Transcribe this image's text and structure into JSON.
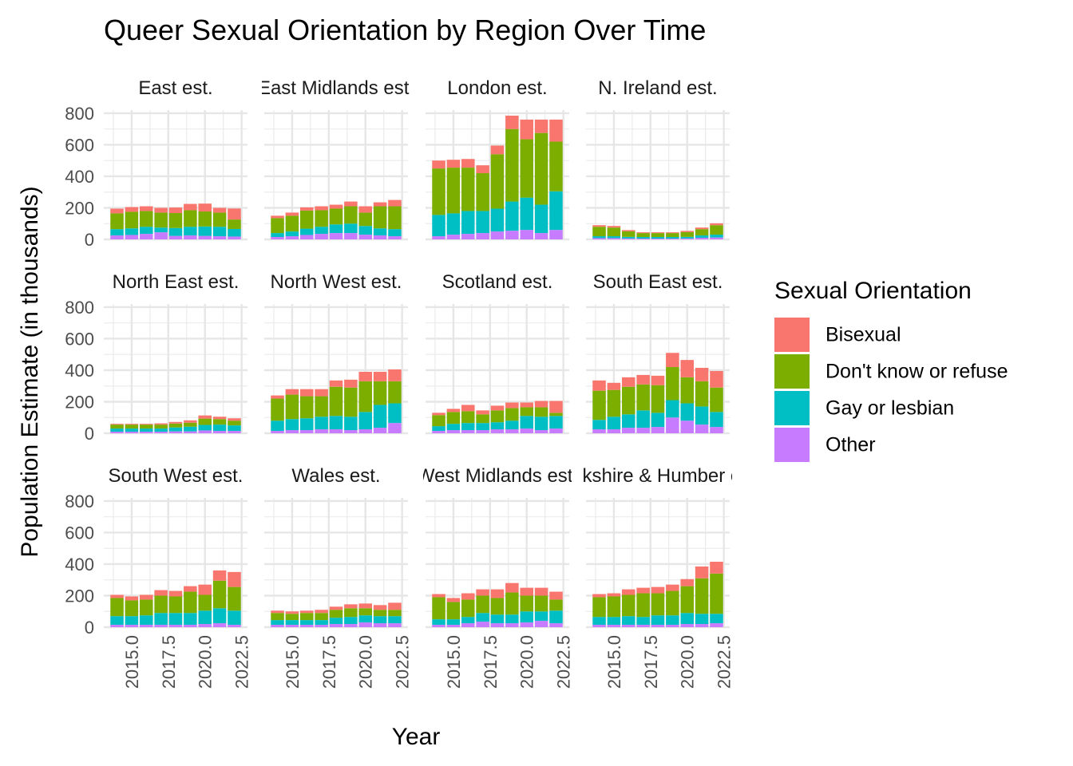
{
  "chart_data": {
    "type": "bar",
    "stacked": true,
    "title": "Queer Sexual Orientation by Region Over Time",
    "xlabel": "Year",
    "ylabel": "Population Estimate (in thousands)",
    "xlim": [
      2013.1,
      2022.9
    ],
    "xticks": [
      "2015.0",
      "2017.5",
      "2020.0",
      "2022.5"
    ],
    "xtick_values": [
      2015,
      2017.5,
      2020,
      2022.5
    ],
    "ylim": [
      0,
      820
    ],
    "yticks": [
      "0",
      "200",
      "400",
      "600",
      "800"
    ],
    "ytick_values": [
      0,
      200,
      400,
      600,
      800
    ],
    "grid": true,
    "years": [
      2014,
      2015,
      2016,
      2017,
      2018,
      2019,
      2020,
      2021,
      2022
    ],
    "legend": {
      "title": "Sexual Orientation",
      "position": "right",
      "items": [
        "Bisexual",
        "Don't know or refuse",
        "Gay or lesbian",
        "Other"
      ]
    },
    "colors": {
      "Bisexual": "#F8766D",
      "Don't know or refuse": "#7CAE00",
      "Gay or lesbian": "#00BFC4",
      "Other": "#C77CFF"
    },
    "facets": [
      {
        "label": "East est.",
        "values": {
          "Other": [
            25,
            28,
            35,
            45,
            22,
            25,
            22,
            20,
            18
          ],
          "Gay or lesbian": [
            40,
            42,
            45,
            30,
            50,
            55,
            60,
            60,
            48
          ],
          "Don't know or refuse": [
            100,
            105,
            100,
            95,
            95,
            105,
            95,
            90,
            60
          ],
          "Bisexual": [
            30,
            30,
            30,
            30,
            35,
            40,
            50,
            30,
            70
          ]
        }
      },
      {
        "label": "East Midlands est.",
        "values": {
          "Other": [
            15,
            20,
            28,
            35,
            40,
            40,
            30,
            25,
            20
          ],
          "Gay or lesbian": [
            25,
            30,
            40,
            45,
            55,
            60,
            55,
            45,
            45
          ],
          "Don't know or refuse": [
            95,
            100,
            115,
            105,
            100,
            110,
            85,
            140,
            145
          ],
          "Bisexual": [
            15,
            20,
            20,
            25,
            25,
            30,
            40,
            25,
            40
          ]
        }
      },
      {
        "label": "London est.",
        "values": {
          "Other": [
            20,
            30,
            35,
            40,
            50,
            55,
            60,
            40,
            60
          ],
          "Gay or lesbian": [
            135,
            135,
            145,
            140,
            145,
            185,
            205,
            180,
            245
          ],
          "Don't know or refuse": [
            295,
            290,
            275,
            240,
            345,
            460,
            370,
            455,
            315
          ],
          "Bisexual": [
            50,
            50,
            55,
            50,
            55,
            85,
            125,
            85,
            140
          ]
        }
      },
      {
        "label": "N. Ireland est.",
        "values": {
          "Other": [
            8,
            8,
            6,
            5,
            5,
            5,
            6,
            10,
            12
          ],
          "Gay or lesbian": [
            12,
            12,
            10,
            10,
            10,
            10,
            10,
            15,
            18
          ],
          "Don't know or refuse": [
            60,
            55,
            35,
            25,
            25,
            25,
            30,
            40,
            60
          ],
          "Bisexual": [
            10,
            10,
            8,
            5,
            5,
            5,
            8,
            10,
            12
          ]
        }
      },
      {
        "label": "North East est.",
        "values": {
          "Other": [
            10,
            10,
            10,
            10,
            12,
            12,
            18,
            15,
            15
          ],
          "Gay or lesbian": [
            20,
            20,
            20,
            20,
            25,
            30,
            35,
            40,
            35
          ],
          "Don't know or refuse": [
            25,
            25,
            25,
            25,
            25,
            25,
            40,
            35,
            30
          ],
          "Bisexual": [
            5,
            5,
            5,
            8,
            10,
            15,
            20,
            15,
            15
          ]
        }
      },
      {
        "label": "North West est.",
        "values": {
          "Other": [
            15,
            20,
            20,
            25,
            25,
            20,
            25,
            35,
            65
          ],
          "Gay or lesbian": [
            65,
            70,
            75,
            80,
            85,
            85,
            110,
            145,
            125
          ],
          "Don't know or refuse": [
            140,
            155,
            140,
            130,
            185,
            185,
            195,
            150,
            140
          ],
          "Bisexual": [
            20,
            35,
            45,
            45,
            40,
            50,
            60,
            60,
            75
          ]
        }
      },
      {
        "label": "Scotland est.",
        "values": {
          "Other": [
            15,
            20,
            20,
            20,
            25,
            25,
            30,
            20,
            30
          ],
          "Gay or lesbian": [
            30,
            40,
            45,
            45,
            45,
            55,
            80,
            85,
            80
          ],
          "Don't know or refuse": [
            70,
            75,
            75,
            55,
            75,
            80,
            55,
            60,
            20
          ],
          "Bisexual": [
            15,
            20,
            40,
            25,
            30,
            35,
            30,
            40,
            75
          ]
        }
      },
      {
        "label": "South East est.",
        "values": {
          "Other": [
            25,
            25,
            35,
            35,
            40,
            100,
            80,
            55,
            40
          ],
          "Gay or lesbian": [
            60,
            80,
            85,
            110,
            90,
            110,
            110,
            115,
            95
          ],
          "Don't know or refuse": [
            185,
            170,
            175,
            165,
            175,
            210,
            165,
            160,
            155
          ],
          "Bisexual": [
            65,
            45,
            60,
            60,
            60,
            90,
            110,
            85,
            105
          ]
        }
      },
      {
        "label": "South West est.",
        "values": {
          "Other": [
            15,
            15,
            15,
            15,
            15,
            15,
            20,
            25,
            15
          ],
          "Gay or lesbian": [
            55,
            55,
            60,
            75,
            75,
            75,
            85,
            95,
            90
          ],
          "Don't know or refuse": [
            115,
            100,
            100,
            110,
            105,
            135,
            100,
            175,
            150
          ],
          "Bisexual": [
            20,
            25,
            30,
            35,
            35,
            35,
            65,
            65,
            95
          ]
        }
      },
      {
        "label": "Wales est.",
        "values": {
          "Other": [
            15,
            15,
            15,
            15,
            20,
            20,
            30,
            25,
            25
          ],
          "Gay or lesbian": [
            30,
            30,
            30,
            30,
            40,
            45,
            45,
            45,
            45
          ],
          "Don't know or refuse": [
            45,
            40,
            45,
            45,
            50,
            55,
            45,
            40,
            40
          ],
          "Bisexual": [
            15,
            15,
            15,
            20,
            20,
            25,
            30,
            30,
            45
          ]
        }
      },
      {
        "label": "West Midlands est.",
        "values": {
          "Other": [
            15,
            15,
            25,
            35,
            25,
            25,
            30,
            40,
            25
          ],
          "Gay or lesbian": [
            35,
            35,
            40,
            55,
            55,
            55,
            70,
            60,
            80
          ],
          "Don't know or refuse": [
            140,
            110,
            110,
            110,
            105,
            140,
            100,
            100,
            70
          ],
          "Bisexual": [
            20,
            25,
            40,
            40,
            55,
            60,
            50,
            50,
            50
          ]
        }
      },
      {
        "label": "Yorkshire & Humber est.",
        "values": {
          "Other": [
            15,
            15,
            15,
            15,
            15,
            15,
            20,
            20,
            25
          ],
          "Gay or lesbian": [
            50,
            50,
            55,
            50,
            60,
            60,
            70,
            65,
            60
          ],
          "Don't know or refuse": [
            125,
            130,
            135,
            150,
            140,
            155,
            170,
            225,
            255
          ],
          "Bisexual": [
            20,
            20,
            35,
            35,
            40,
            40,
            45,
            75,
            75
          ]
        }
      }
    ]
  }
}
